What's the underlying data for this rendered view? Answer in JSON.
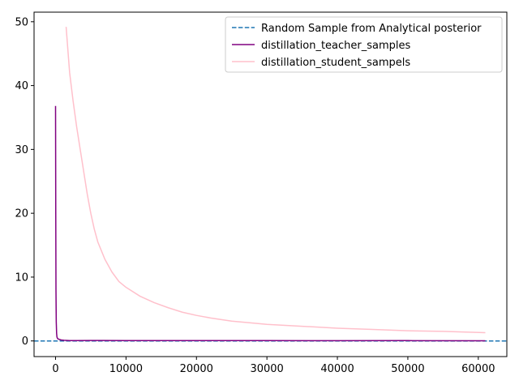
{
  "chart_data": {
    "type": "line",
    "title": "",
    "xlabel": "",
    "ylabel": "",
    "xlim": [
      -3050,
      64050
    ],
    "ylim": [
      -2.45,
      51.5
    ],
    "x_ticks": [
      0,
      10000,
      20000,
      30000,
      40000,
      50000,
      60000
    ],
    "y_ticks": [
      0,
      10,
      20,
      30,
      40,
      50
    ],
    "grid": false,
    "legend_position": "top-right",
    "hline": {
      "name": "Random Sample from Analytical posterior",
      "y": 0,
      "color": "#1f77b4",
      "style": "dashed"
    },
    "series": [
      {
        "name": "distillation_teacher_samples",
        "color": "#800080",
        "x": [
          0,
          30,
          60,
          100,
          150,
          200,
          300,
          500,
          800,
          1200,
          2000,
          3000,
          5000,
          10000,
          20000,
          30000,
          40000,
          50000,
          61000
        ],
        "y": [
          36.8,
          20,
          8,
          3,
          1.2,
          0.6,
          0.35,
          0.25,
          0.15,
          0.1,
          0.06,
          0.06,
          0.08,
          0.05,
          0.05,
          0.06,
          0.04,
          0.05,
          0.03
        ]
      },
      {
        "name": "distillation_student_sampels",
        "color": "#ffc0cb",
        "x": [
          1500,
          2000,
          2500,
          3000,
          3500,
          4000,
          4500,
          5000,
          5500,
          6000,
          7000,
          8000,
          9000,
          10000,
          12000,
          14000,
          16000,
          18000,
          20000,
          22000,
          25000,
          28000,
          30000,
          35000,
          40000,
          45000,
          50000,
          55000,
          61000
        ],
        "y": [
          49.2,
          42,
          37.5,
          33.5,
          30,
          26.5,
          23,
          20,
          17.5,
          15.5,
          12.8,
          10.8,
          9.3,
          8.4,
          7,
          6,
          5.2,
          4.5,
          4,
          3.6,
          3.1,
          2.8,
          2.6,
          2.3,
          2,
          1.8,
          1.6,
          1.5,
          1.3
        ]
      }
    ]
  }
}
